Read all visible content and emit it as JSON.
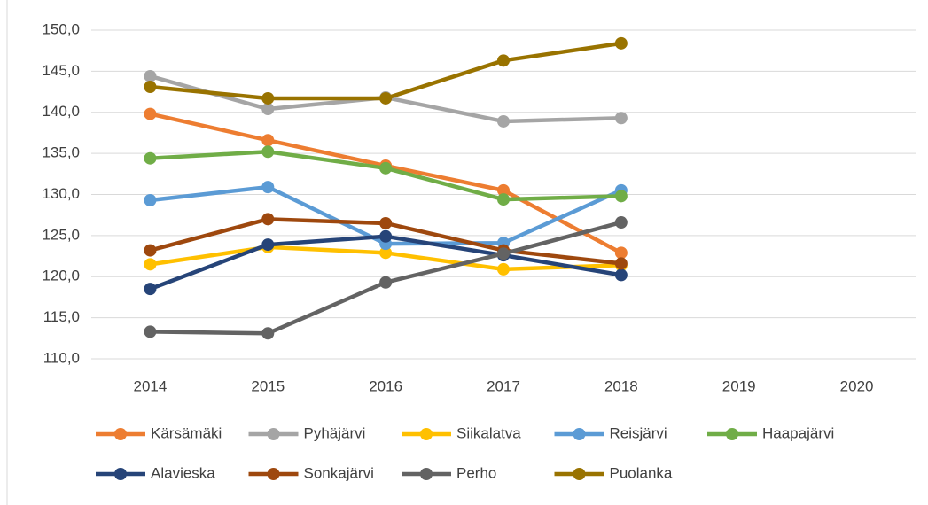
{
  "chart_data": {
    "type": "line",
    "categories": [
      "2014",
      "2015",
      "2016",
      "2017",
      "2018",
      "2019",
      "2020"
    ],
    "series": [
      {
        "name": "Kärsämäki",
        "color": "#ed7d31",
        "values": [
          139.8,
          136.6,
          133.5,
          130.5,
          122.9,
          null,
          null
        ]
      },
      {
        "name": "Pyhäjärvi",
        "color": "#a5a5a5",
        "values": [
          144.4,
          140.4,
          141.8,
          138.9,
          139.3,
          null,
          null
        ]
      },
      {
        "name": "Siikalatva",
        "color": "#ffc000",
        "values": [
          121.5,
          123.6,
          122.9,
          120.9,
          121.4,
          null,
          null
        ]
      },
      {
        "name": "Reisjärvi",
        "color": "#5b9bd5",
        "values": [
          129.3,
          130.9,
          124.0,
          124.1,
          130.5,
          null,
          null
        ]
      },
      {
        "name": "Haapajärvi",
        "color": "#70ad47",
        "values": [
          134.4,
          135.2,
          133.2,
          129.4,
          129.8,
          null,
          null
        ]
      },
      {
        "name": "Alavieska",
        "color": "#264478",
        "values": [
          118.5,
          123.9,
          124.9,
          122.6,
          120.2,
          null,
          null
        ]
      },
      {
        "name": "Sonkajärvi",
        "color": "#9e480e",
        "values": [
          123.2,
          127.0,
          126.5,
          123.2,
          121.6,
          null,
          null
        ]
      },
      {
        "name": "Perho",
        "color": "#636363",
        "values": [
          113.3,
          113.1,
          119.3,
          122.8,
          126.6,
          null,
          null
        ]
      },
      {
        "name": "Puolanka",
        "color": "#997300",
        "values": [
          143.1,
          141.7,
          141.7,
          146.3,
          148.4,
          null,
          null
        ]
      }
    ],
    "ylim": [
      110,
      150
    ],
    "yticks": [
      {
        "value": 110,
        "label": "110,0"
      },
      {
        "value": 115,
        "label": "115,0"
      },
      {
        "value": 120,
        "label": "120,0"
      },
      {
        "value": 125,
        "label": "125,0"
      },
      {
        "value": 130,
        "label": "130,0"
      },
      {
        "value": 135,
        "label": "135,0"
      },
      {
        "value": 140,
        "label": "140,0"
      },
      {
        "value": 145,
        "label": "145,0"
      },
      {
        "value": 150,
        "label": "150,0"
      }
    ],
    "grid": true,
    "legend": "bottom"
  }
}
